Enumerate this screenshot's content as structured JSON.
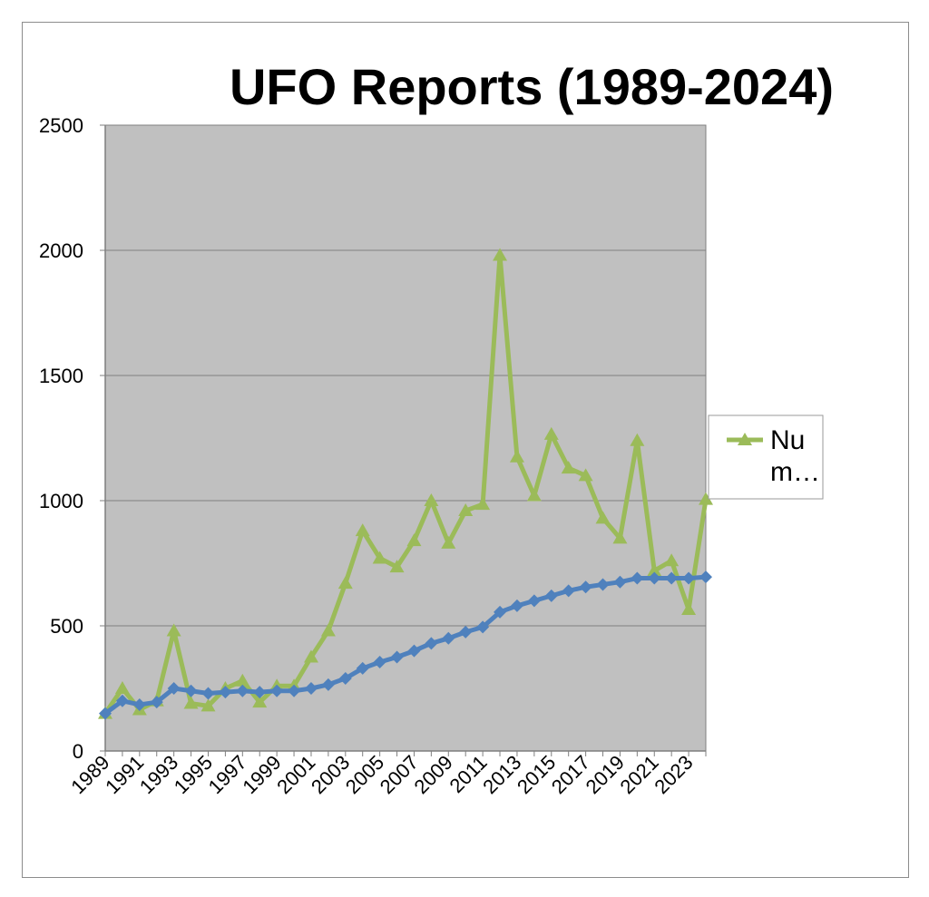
{
  "chart_data": {
    "type": "line",
    "title": "UFO Reports (1989-2024)",
    "xlabel": "",
    "ylabel": "",
    "ylim": [
      0,
      2500
    ],
    "yticks": [
      0,
      500,
      1000,
      1500,
      2000,
      2500
    ],
    "grid": "horizontal",
    "legend_position": "right",
    "plot_background": "#c0c0c0",
    "x": [
      1989,
      1990,
      1991,
      1992,
      1993,
      1994,
      1995,
      1996,
      1997,
      1998,
      1999,
      2000,
      2001,
      2002,
      2003,
      2004,
      2005,
      2006,
      2007,
      2008,
      2009,
      2010,
      2011,
      2012,
      2013,
      2014,
      2015,
      2016,
      2017,
      2018,
      2019,
      2020,
      2021,
      2022,
      2023,
      2024
    ],
    "xtick_labels": [
      "1989",
      "1991",
      "1993",
      "1995",
      "1997",
      "1999",
      "2001",
      "2003",
      "2005",
      "2007",
      "2009",
      "2011",
      "2013",
      "2015",
      "2017",
      "2019",
      "2021",
      "2023"
    ],
    "series": [
      {
        "name": "Nu m…",
        "color": "#9bbb59",
        "marker": "triangle",
        "values": [
          150,
          250,
          165,
          200,
          480,
          190,
          180,
          250,
          280,
          195,
          260,
          260,
          375,
          480,
          670,
          880,
          770,
          735,
          840,
          1000,
          830,
          960,
          985,
          1980,
          1175,
          1020,
          1265,
          1130,
          1100,
          930,
          850,
          1240,
          720,
          760,
          565,
          1005
        ]
      },
      {
        "name": "",
        "color": "#4f81bd",
        "marker": "diamond",
        "values": [
          150,
          200,
          185,
          195,
          250,
          240,
          230,
          235,
          240,
          235,
          240,
          240,
          250,
          265,
          290,
          330,
          355,
          375,
          400,
          430,
          450,
          475,
          495,
          555,
          580,
          600,
          620,
          640,
          655,
          665,
          675,
          690,
          690,
          690,
          690,
          695
        ]
      }
    ]
  }
}
